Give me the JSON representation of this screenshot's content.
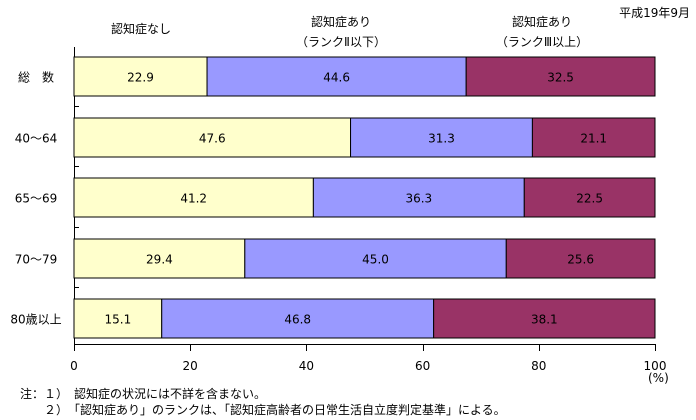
{
  "chart_data": {
    "type": "stacked-bar-horizontal",
    "date_label": "平成19年9月",
    "categories": [
      "総　数",
      "40～64",
      "65～69",
      "70～79",
      "80歳以上"
    ],
    "series": [
      {
        "name": "認知症なし",
        "name_line2": "",
        "color": "#ffffcc",
        "values": [
          22.9,
          47.6,
          41.2,
          29.4,
          15.1
        ]
      },
      {
        "name": "認知症あり",
        "name_line2": "（ランクⅡ以下）",
        "color": "#9999ff",
        "values": [
          44.6,
          31.3,
          36.3,
          45.0,
          46.8
        ]
      },
      {
        "name": "認知症あり",
        "name_line2": "（ランクⅢ以上）",
        "color": "#993366",
        "values": [
          32.5,
          21.1,
          22.5,
          25.6,
          38.1
        ]
      }
    ],
    "xlim": [
      0,
      100
    ],
    "xticks": [
      0,
      20,
      40,
      60,
      80,
      100
    ],
    "xunit": "(%)",
    "notes": [
      "注：１）　認知症の状況には不詳を含まない。",
      "　　２）　「認知症あり」のランクは、「認知症高齢者の日常生活自立度判定基準」による。"
    ]
  }
}
